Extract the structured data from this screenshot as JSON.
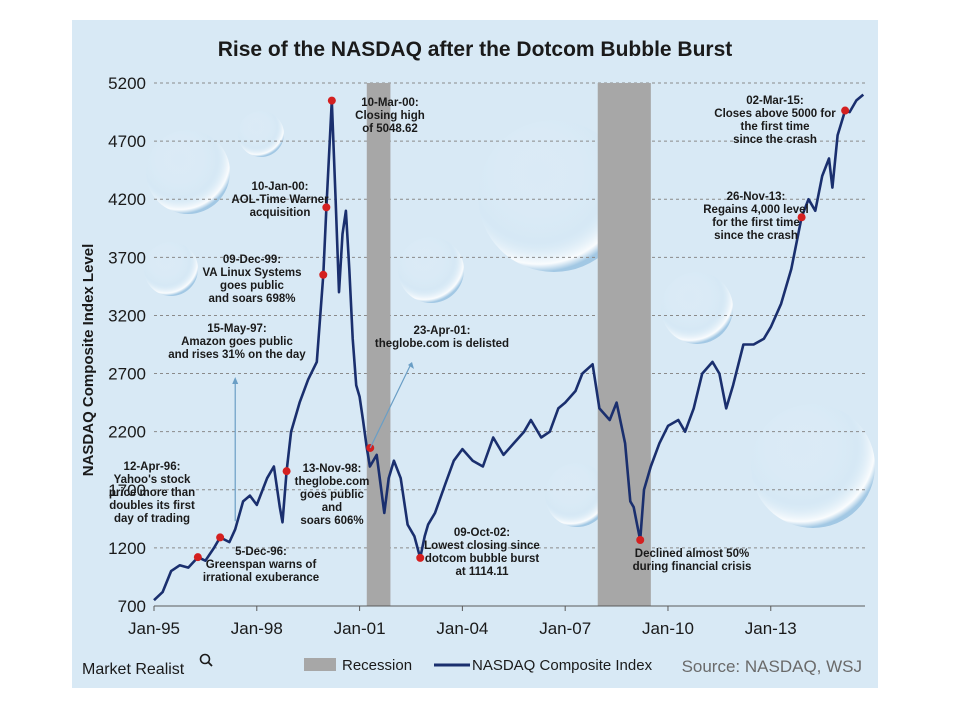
{
  "chart_data": {
    "type": "line",
    "title": "Rise of the NASDAQ after the Dotcom Bubble Burst",
    "ylabel": "NASDAQ Composite Index Level",
    "xlabel": "",
    "ylim": [
      700,
      5200
    ],
    "yticks": [
      700,
      1200,
      1700,
      2200,
      2700,
      3200,
      3700,
      4200,
      4700,
      5200
    ],
    "xlim": [
      1995.0,
      2015.75
    ],
    "xticks": [
      {
        "label": "Jan-95",
        "x": 1995.0
      },
      {
        "label": "Jan-98",
        "x": 1998.0
      },
      {
        "label": "Jan-01",
        "x": 2001.0
      },
      {
        "label": "Jan-04",
        "x": 2004.0
      },
      {
        "label": "Jan-07",
        "x": 2007.0
      },
      {
        "label": "Jan-10",
        "x": 2010.0
      },
      {
        "label": "Jan-13",
        "x": 2013.0
      }
    ],
    "grid": "horizontal dashed",
    "series": [
      {
        "name": "NASDAQ Composite Index",
        "color": "#1a2f6e",
        "x": [
          1995.0,
          1995.25,
          1995.5,
          1995.75,
          1996.0,
          1996.28,
          1996.5,
          1996.75,
          1996.93,
          1997.2,
          1997.37,
          1997.6,
          1997.8,
          1998.0,
          1998.3,
          1998.5,
          1998.67,
          1998.75,
          1998.87,
          1999.0,
          1999.25,
          1999.5,
          1999.75,
          1999.94,
          2000.03,
          2000.19,
          2000.3,
          2000.4,
          2000.5,
          2000.6,
          2000.7,
          2000.8,
          2000.9,
          2001.0,
          2001.1,
          2001.21,
          2001.3,
          2001.5,
          2001.72,
          2001.85,
          2002.0,
          2002.2,
          2002.4,
          2002.6,
          2002.77,
          2002.9,
          2003.0,
          2003.2,
          2003.5,
          2003.75,
          2004.0,
          2004.3,
          2004.6,
          2004.9,
          2005.2,
          2005.5,
          2005.8,
          2006.0,
          2006.3,
          2006.55,
          2006.8,
          2007.0,
          2007.3,
          2007.5,
          2007.8,
          2008.0,
          2008.3,
          2008.5,
          2008.75,
          2008.9,
          2009.0,
          2009.1,
          2009.19,
          2009.3,
          2009.5,
          2009.75,
          2010.0,
          2010.3,
          2010.5,
          2010.75,
          2011.0,
          2011.3,
          2011.5,
          2011.7,
          2011.9,
          2012.2,
          2012.5,
          2012.8,
          2013.0,
          2013.3,
          2013.6,
          2013.9,
          2014.1,
          2014.3,
          2014.5,
          2014.7,
          2014.8,
          2014.95,
          2015.17,
          2015.3,
          2015.5,
          2015.7
        ],
        "values": [
          750,
          820,
          1000,
          1050,
          1030,
          1120,
          1090,
          1200,
          1290,
          1250,
          1360,
          1600,
          1650,
          1570,
          1800,
          1900,
          1550,
          1420,
          1860,
          2200,
          2450,
          2650,
          2800,
          3550,
          4130,
          5048,
          4200,
          3400,
          3900,
          4100,
          3600,
          3000,
          2600,
          2500,
          2300,
          2060,
          1900,
          2000,
          1500,
          1800,
          1950,
          1800,
          1400,
          1300,
          1114,
          1300,
          1400,
          1500,
          1750,
          1950,
          2050,
          1950,
          1900,
          2150,
          2000,
          2100,
          2200,
          2300,
          2150,
          2200,
          2400,
          2450,
          2550,
          2700,
          2780,
          2400,
          2300,
          2450,
          2100,
          1600,
          1550,
          1400,
          1268,
          1700,
          1900,
          2100,
          2250,
          2300,
          2200,
          2400,
          2700,
          2800,
          2700,
          2400,
          2600,
          2950,
          2950,
          3000,
          3100,
          3300,
          3600,
          4045,
          4200,
          4100,
          4400,
          4550,
          4300,
          4750,
          4963,
          4950,
          5050,
          5100
        ]
      }
    ],
    "recessions": [
      {
        "label": "Recession",
        "start": 2001.21,
        "end": 2001.9
      },
      {
        "label": "Recession",
        "start": 2007.95,
        "end": 2009.5
      }
    ],
    "annotations": [
      {
        "x": 1996.28,
        "y": 1120,
        "marker": true,
        "text": [
          "12-Apr-96:",
          "Yahoo's stock",
          "price more than",
          "doubles its first",
          "day of trading"
        ]
      },
      {
        "x": 1996.93,
        "y": 1290,
        "marker": true,
        "text": [
          "5-Dec-96:",
          "Greenspan warns of",
          "irrational exuberance"
        ]
      },
      {
        "x": 1997.37,
        "y": 1360,
        "marker": false,
        "text": [
          "15-May-97:",
          "Amazon goes public",
          "and rises 31% on the day"
        ]
      },
      {
        "x": 1998.87,
        "y": 1860,
        "marker": true,
        "text": [
          "13-Nov-98:",
          "theglobe.com",
          "goes public",
          "and",
          "soars 606%"
        ]
      },
      {
        "x": 1999.94,
        "y": 3550,
        "marker": true,
        "text": [
          "09-Dec-99:",
          "VA Linux Systems",
          "goes public",
          "and soars 698%"
        ]
      },
      {
        "x": 2000.03,
        "y": 4130,
        "marker": true,
        "text": [
          "10-Jan-00:",
          "AOL-Time Warner",
          "acquisition"
        ]
      },
      {
        "x": 2000.19,
        "y": 5048.62,
        "marker": true,
        "text": [
          "10-Mar-00:",
          "Closing high",
          "of 5048.62"
        ]
      },
      {
        "x": 2001.31,
        "y": 2060,
        "marker": true,
        "text": [
          "23-Apr-01:",
          "theglobe.com is delisted"
        ]
      },
      {
        "x": 2002.77,
        "y": 1114.11,
        "marker": true,
        "text": [
          "09-Oct-02:",
          "Lowest closing since",
          "dotcom bubble burst",
          "at 1114.11"
        ]
      },
      {
        "x": 2009.19,
        "y": 1268,
        "marker": true,
        "text": [
          "Declined almost 50%",
          "during financial crisis"
        ]
      },
      {
        "x": 2013.9,
        "y": 4045,
        "marker": true,
        "text": [
          "26-Nov-13:",
          "Regains 4,000 level",
          "for the first time",
          "since the crash"
        ]
      },
      {
        "x": 2015.17,
        "y": 4963,
        "marker": true,
        "text": [
          "02-Mar-15:",
          "Closes above 5000 for",
          "the first time",
          "since the crash"
        ]
      }
    ],
    "legend": {
      "placement": "bottom",
      "entries": [
        {
          "label": "Recession",
          "color": "#a7a7a7"
        },
        {
          "label": "NASDAQ Composite Index",
          "color": "#1a2f6e"
        }
      ]
    },
    "source": "Source: NASDAQ, WSJ",
    "brand": "Market Realist",
    "colors": {
      "background": "#d8e9f5",
      "line": "#1a2f6e",
      "recession": "#a7a7a7",
      "marker": "#d42020",
      "grid": "#8a8a8a"
    }
  }
}
